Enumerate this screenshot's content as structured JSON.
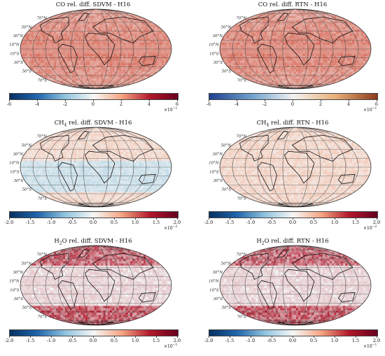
{
  "panels": [
    {
      "title_pre": "CO rel. diff. SDVM - H16",
      "title_sub": "",
      "title_post": "",
      "ticks": [
        "-6",
        "-4",
        "-2",
        "0",
        "2",
        "4",
        "6"
      ],
      "scale_base": "×10",
      "scale_exp": "−1",
      "cmap": "redblue",
      "bias": "red_strong"
    },
    {
      "title_pre": "CO rel. diff. RTN - H16",
      "title_sub": "",
      "title_post": "",
      "ticks": [
        "-6",
        "-4",
        "-2",
        "0",
        "2",
        "4",
        "6"
      ],
      "scale_base": "×10",
      "scale_exp": "−1",
      "cmap": "copper",
      "bias": "red_strong"
    },
    {
      "title_pre": "CH",
      "title_sub": "4",
      "title_post": " rel. diff. SDVM - H16",
      "ticks": [
        "-2.0",
        "-1.5",
        "-1.0",
        "-0.5",
        "0.0",
        "0.5",
        "1.0",
        "1.5",
        "2.0"
      ],
      "scale_base": "×10",
      "scale_exp": "−2",
      "cmap": "redblue",
      "bias": "mixed_blue"
    },
    {
      "title_pre": "CH",
      "title_sub": "4",
      "title_post": " rel. diff. RTN - H16",
      "ticks": [
        "-2.0",
        "-1.5",
        "-1.0",
        "-0.5",
        "0.0",
        "0.5",
        "1.0",
        "1.5",
        "2.0"
      ],
      "scale_base": "×10",
      "scale_exp": "−2",
      "cmap": "redblue",
      "bias": "light_red"
    },
    {
      "title_pre": "H",
      "title_sub": "2",
      "title_post": "O rel. diff. SDVM - H16",
      "ticks": [
        "-2.0",
        "-1.5",
        "-1.0",
        "-0.5",
        "0.0",
        "0.5",
        "1.0",
        "1.5",
        "2.0"
      ],
      "scale_base": "×10",
      "scale_exp": "−1",
      "cmap": "redblue",
      "bias": "polar_red"
    },
    {
      "title_pre": "H",
      "title_sub": "2",
      "title_post": "O rel. diff. RTN - H16",
      "ticks": [
        "-2.0",
        "-1.5",
        "-1.0",
        "-0.5",
        "0.0",
        "0.5",
        "1.0",
        "1.5",
        "2.0"
      ],
      "scale_base": "×10",
      "scale_exp": "−1",
      "cmap": "redblue",
      "bias": "polar_red"
    }
  ],
  "lat_labels": [
    "70°N",
    "50°N",
    "30°N",
    "10°N",
    "10°S",
    "30°S",
    "50°S",
    "70°S"
  ],
  "colors": {
    "blue": "#1f3f8f",
    "white": "#f5f5f5",
    "red": "#8b1a1a",
    "copper": "#8b3a1a"
  }
}
